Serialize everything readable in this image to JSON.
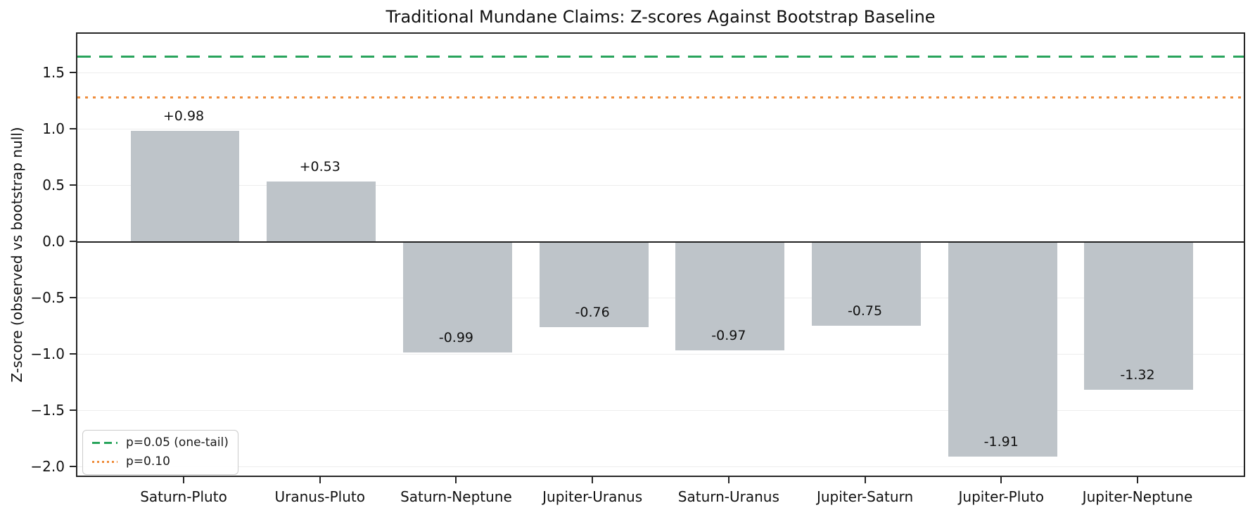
{
  "chart_data": {
    "type": "bar",
    "title": "Traditional Mundane Claims: Z-scores Against Bootstrap Baseline",
    "xlabel": "",
    "ylabel": "Z-score (observed vs bootstrap null)",
    "categories": [
      "Saturn-Pluto",
      "Uranus-Pluto",
      "Saturn-Neptune",
      "Jupiter-Uranus",
      "Saturn-Uranus",
      "Jupiter-Saturn",
      "Jupiter-Pluto",
      "Jupiter-Neptune"
    ],
    "values": [
      0.98,
      0.53,
      -0.99,
      -0.76,
      -0.97,
      -0.75,
      -1.91,
      -1.32
    ],
    "value_labels": [
      "+0.98",
      "+0.53",
      "-0.99",
      "-0.76",
      "-0.97",
      "-0.75",
      "-1.91",
      "-1.32"
    ],
    "bar_color": "#bec4c9",
    "ylim": [
      -2.094,
      1.856
    ],
    "yticks": [
      1.5,
      1.0,
      0.5,
      0.0,
      -0.5,
      -1.0,
      -1.5,
      -2.0
    ],
    "ytick_labels": [
      "1.5",
      "1.0",
      "0.5",
      "0.0",
      "−0.5",
      "−1.0",
      "−1.5",
      "−2.0"
    ],
    "grid": true,
    "zero_line": true,
    "legend_position": "lower-left",
    "reference_lines": [
      {
        "value": 1.645,
        "style": "dashed",
        "color": "#29a45c",
        "label": "p=0.05 (one-tail)"
      },
      {
        "value": 1.282,
        "style": "dotted",
        "color": "#ef8d3c",
        "label": "p=0.10"
      }
    ],
    "colors": {
      "spine": "#262626",
      "gridline": "#ededed",
      "text": "#111111",
      "background": "#ffffff"
    }
  }
}
